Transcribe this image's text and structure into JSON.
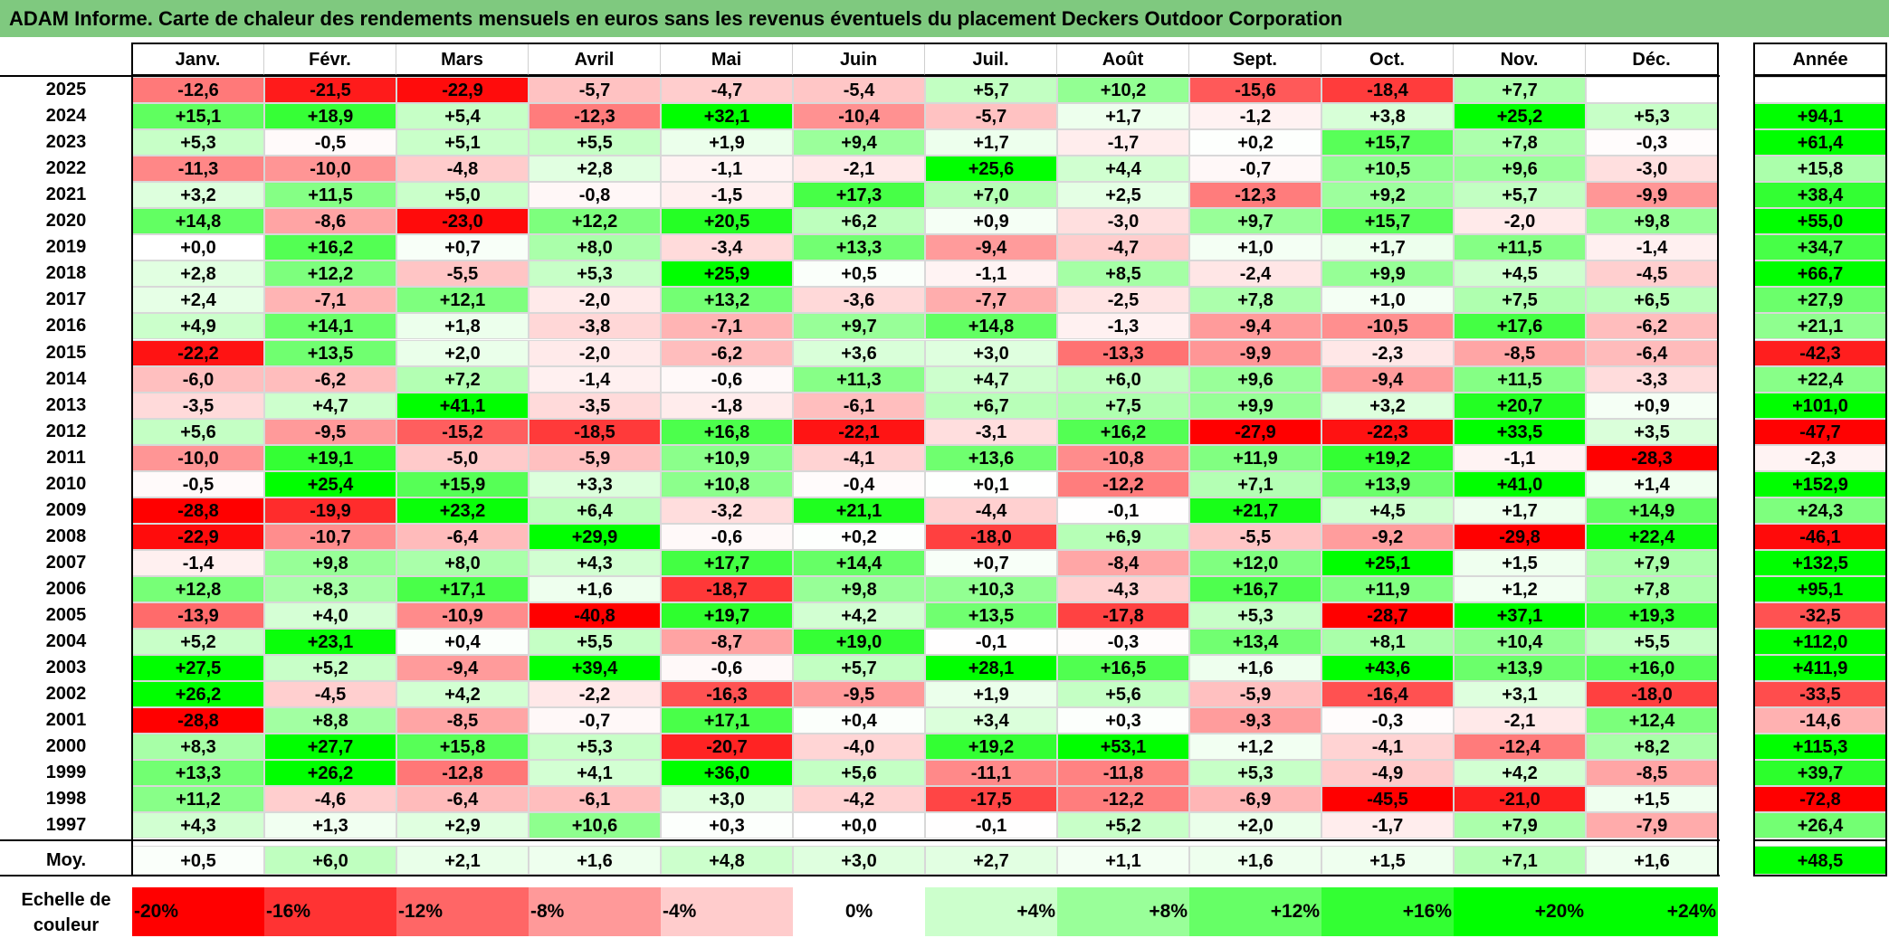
{
  "title": "ADAM Informe. Carte de chaleur des rendements mensuels en euros sans les revenus éventuels du placement Deckers Outdoor Corporation",
  "colors": {
    "header_bar": "#7fc97f",
    "neg_max": "#ff0000",
    "pos_max": "#00ff00",
    "neutral": "#ffffff"
  },
  "chart_data": {
    "type": "heatmap",
    "title": "ADAM Informe. Carte de chaleur des rendements mensuels en euros sans les revenus éventuels du placement Deckers Outdoor Corporation",
    "columns": [
      "Janv.",
      "Févr.",
      "Mars",
      "Avril",
      "Mai",
      "Juin",
      "Juil.",
      "Août",
      "Sept.",
      "Oct.",
      "Nov.",
      "Déc."
    ],
    "year_column_label": "Année",
    "rows": [
      {
        "year": "2025",
        "values": [
          "-12,6",
          "-21,5",
          "-22,9",
          "-5,7",
          "-4,7",
          "-5,4",
          "+5,7",
          "+10,2",
          "-15,6",
          "-18,4",
          "+7,7",
          ""
        ],
        "annual": ""
      },
      {
        "year": "2024",
        "values": [
          "+15,1",
          "+18,9",
          "+5,4",
          "-12,3",
          "+32,1",
          "-10,4",
          "-5,7",
          "+1,7",
          "-1,2",
          "+3,8",
          "+25,2",
          "+5,3"
        ],
        "annual": "+94,1"
      },
      {
        "year": "2023",
        "values": [
          "+5,3",
          "-0,5",
          "+5,1",
          "+5,5",
          "+1,9",
          "+9,4",
          "+1,7",
          "-1,7",
          "+0,2",
          "+15,7",
          "+7,8",
          "-0,3"
        ],
        "annual": "+61,4"
      },
      {
        "year": "2022",
        "values": [
          "-11,3",
          "-10,0",
          "-4,8",
          "+2,8",
          "-1,1",
          "-2,1",
          "+25,6",
          "+4,4",
          "-0,7",
          "+10,5",
          "+9,6",
          "-3,0"
        ],
        "annual": "+15,8"
      },
      {
        "year": "2021",
        "values": [
          "+3,2",
          "+11,5",
          "+5,0",
          "-0,8",
          "-1,5",
          "+17,3",
          "+7,0",
          "+2,5",
          "-12,3",
          "+9,2",
          "+5,7",
          "-9,9"
        ],
        "annual": "+38,4"
      },
      {
        "year": "2020",
        "values": [
          "+14,8",
          "-8,6",
          "-23,0",
          "+12,2",
          "+20,5",
          "+6,2",
          "+0,9",
          "-3,0",
          "+9,7",
          "+15,7",
          "-2,0",
          "+9,8"
        ],
        "annual": "+55,0"
      },
      {
        "year": "2019",
        "values": [
          "+0,0",
          "+16,2",
          "+0,7",
          "+8,0",
          "-3,4",
          "+13,3",
          "-9,4",
          "-4,7",
          "+1,0",
          "+1,7",
          "+11,5",
          "-1,4"
        ],
        "annual": "+34,7"
      },
      {
        "year": "2018",
        "values": [
          "+2,8",
          "+12,2",
          "-5,5",
          "+5,3",
          "+25,9",
          "+0,5",
          "-1,1",
          "+8,5",
          "-2,4",
          "+9,9",
          "+4,5",
          "-4,5"
        ],
        "annual": "+66,7"
      },
      {
        "year": "2017",
        "values": [
          "+2,4",
          "-7,1",
          "+12,1",
          "-2,0",
          "+13,2",
          "-3,6",
          "-7,7",
          "-2,5",
          "+7,8",
          "+1,0",
          "+7,5",
          "+6,5"
        ],
        "annual": "+27,9"
      },
      {
        "year": "2016",
        "values": [
          "+4,9",
          "+14,1",
          "+1,8",
          "-3,8",
          "-7,1",
          "+9,7",
          "+14,8",
          "-1,3",
          "-9,4",
          "-10,5",
          "+17,6",
          "-6,2"
        ],
        "annual": "+21,1"
      },
      {
        "year": "2015",
        "values": [
          "-22,2",
          "+13,5",
          "+2,0",
          "-2,0",
          "-6,2",
          "+3,6",
          "+3,0",
          "-13,3",
          "-9,9",
          "-2,3",
          "-8,5",
          "-6,4"
        ],
        "annual": "-42,3"
      },
      {
        "year": "2014",
        "values": [
          "-6,0",
          "-6,2",
          "+7,2",
          "-1,4",
          "-0,6",
          "+11,3",
          "+4,7",
          "+6,0",
          "+9,6",
          "-9,4",
          "+11,5",
          "-3,3"
        ],
        "annual": "+22,4"
      },
      {
        "year": "2013",
        "values": [
          "-3,5",
          "+4,7",
          "+41,1",
          "-3,5",
          "-1,8",
          "-6,1",
          "+6,7",
          "+7,5",
          "+9,9",
          "+3,2",
          "+20,7",
          "+0,9"
        ],
        "annual": "+101,0"
      },
      {
        "year": "2012",
        "values": [
          "+5,6",
          "-9,5",
          "-15,2",
          "-18,5",
          "+16,8",
          "-22,1",
          "-3,1",
          "+16,2",
          "-27,9",
          "-22,3",
          "+33,5",
          "+3,5"
        ],
        "annual": "-47,7"
      },
      {
        "year": "2011",
        "values": [
          "-10,0",
          "+19,1",
          "-5,0",
          "-5,9",
          "+10,9",
          "-4,1",
          "+13,6",
          "-10,8",
          "+11,9",
          "+19,2",
          "-1,1",
          "-28,3"
        ],
        "annual": "-2,3"
      },
      {
        "year": "2010",
        "values": [
          "-0,5",
          "+25,4",
          "+15,9",
          "+3,3",
          "+10,8",
          "-0,4",
          "+0,1",
          "-12,2",
          "+7,1",
          "+13,9",
          "+41,0",
          "+1,4"
        ],
        "annual": "+152,9"
      },
      {
        "year": "2009",
        "values": [
          "-28,8",
          "-19,9",
          "+23,2",
          "+6,4",
          "-3,2",
          "+21,1",
          "-4,4",
          "-0,1",
          "+21,7",
          "+4,5",
          "+1,7",
          "+14,9"
        ],
        "annual": "+24,3"
      },
      {
        "year": "2008",
        "values": [
          "-22,9",
          "-10,7",
          "-6,4",
          "+29,9",
          "-0,6",
          "+0,2",
          "-18,0",
          "+6,9",
          "-5,5",
          "-9,2",
          "-29,8",
          "+22,4"
        ],
        "annual": "-46,1"
      },
      {
        "year": "2007",
        "values": [
          "-1,4",
          "+9,8",
          "+8,0",
          "+4,3",
          "+17,7",
          "+14,4",
          "+0,7",
          "-8,4",
          "+12,0",
          "+25,1",
          "+1,5",
          "+7,9"
        ],
        "annual": "+132,5"
      },
      {
        "year": "2006",
        "values": [
          "+12,8",
          "+8,3",
          "+17,1",
          "+1,6",
          "-18,7",
          "+9,8",
          "+10,3",
          "-4,3",
          "+16,7",
          "+11,9",
          "+1,2",
          "+7,8"
        ],
        "annual": "+95,1"
      },
      {
        "year": "2005",
        "values": [
          "-13,9",
          "+4,0",
          "-10,9",
          "-40,8",
          "+19,7",
          "+4,2",
          "+13,5",
          "-17,8",
          "+5,3",
          "-28,7",
          "+37,1",
          "+19,3"
        ],
        "annual": "-32,5"
      },
      {
        "year": "2004",
        "values": [
          "+5,2",
          "+23,1",
          "+0,4",
          "+5,5",
          "-8,7",
          "+19,0",
          "-0,1",
          "-0,3",
          "+13,4",
          "+8,1",
          "+10,4",
          "+5,5"
        ],
        "annual": "+112,0"
      },
      {
        "year": "2003",
        "values": [
          "+27,5",
          "+5,2",
          "-9,4",
          "+39,4",
          "-0,6",
          "+5,7",
          "+28,1",
          "+16,5",
          "+1,6",
          "+43,6",
          "+13,9",
          "+16,0"
        ],
        "annual": "+411,9"
      },
      {
        "year": "2002",
        "values": [
          "+26,2",
          "-4,5",
          "+4,2",
          "-2,2",
          "-16,3",
          "-9,5",
          "+1,9",
          "+5,6",
          "-5,9",
          "-16,4",
          "+3,1",
          "-18,0"
        ],
        "annual": "-33,5"
      },
      {
        "year": "2001",
        "values": [
          "-28,8",
          "+8,8",
          "-8,5",
          "-0,7",
          "+17,1",
          "+0,4",
          "+3,4",
          "+0,3",
          "-9,3",
          "-0,3",
          "-2,1",
          "+12,4"
        ],
        "annual": "-14,6"
      },
      {
        "year": "2000",
        "values": [
          "+8,3",
          "+27,7",
          "+15,8",
          "+5,3",
          "-20,7",
          "-4,0",
          "+19,2",
          "+53,1",
          "+1,2",
          "-4,1",
          "-12,4",
          "+8,2"
        ],
        "annual": "+115,3"
      },
      {
        "year": "1999",
        "values": [
          "+13,3",
          "+26,2",
          "-12,8",
          "+4,1",
          "+36,0",
          "+5,6",
          "-11,1",
          "-11,8",
          "+5,3",
          "-4,9",
          "+4,2",
          "-8,5"
        ],
        "annual": "+39,7"
      },
      {
        "year": "1998",
        "values": [
          "+11,2",
          "-4,6",
          "-6,4",
          "-6,1",
          "+3,0",
          "-4,2",
          "-17,5",
          "-12,2",
          "-6,9",
          "-45,5",
          "-21,0",
          "+1,5"
        ],
        "annual": "-72,8"
      },
      {
        "year": "1997",
        "values": [
          "+4,3",
          "+1,3",
          "+2,9",
          "+10,6",
          "+0,3",
          "+0,0",
          "-0,1",
          "+5,2",
          "+2,0",
          "-1,7",
          "+7,9",
          "-7,9"
        ],
        "annual": "+26,4"
      }
    ],
    "average": {
      "label": "Moy.",
      "values": [
        "+0,5",
        "+6,0",
        "+2,1",
        "+1,6",
        "+4,8",
        "+3,0",
        "+2,7",
        "+1,1",
        "+1,6",
        "+1,5",
        "+7,1",
        "+1,6"
      ],
      "annual": "+48,5"
    },
    "scale_label": "Echelle de couleur",
    "scale": [
      "-20%",
      "-16%",
      "-12%",
      "-8%",
      "-4%",
      "0%",
      "+4%",
      "+8%",
      "+12%",
      "+16%",
      "+20%",
      "+24%"
    ],
    "scale_values": [
      -20,
      -16,
      -12,
      -8,
      -4,
      0,
      4,
      8,
      12,
      16,
      20,
      24
    ]
  }
}
